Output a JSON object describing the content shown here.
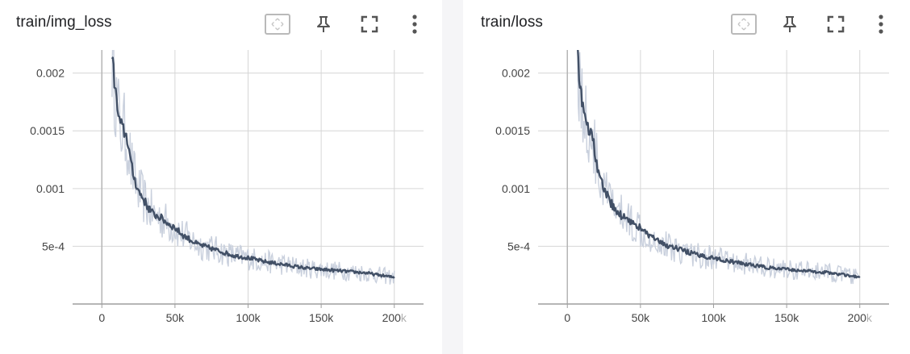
{
  "panels": [
    {
      "title": "train/img_loss",
      "toolbar": [
        "fit-domain-icon",
        "pin-icon",
        "fullscreen-icon",
        "more-vert-icon"
      ]
    },
    {
      "title": "train/loss",
      "toolbar": [
        "fit-domain-icon",
        "pin-icon",
        "fullscreen-icon",
        "more-vert-icon"
      ]
    }
  ],
  "colors": {
    "line": "#425066",
    "band": "#c9d0dd",
    "grid": "#d6d6d6",
    "axis": "#9e9e9e"
  },
  "chart_data": [
    {
      "type": "line",
      "title": "train/img_loss",
      "xlabel": "",
      "ylabel": "",
      "xlim": [
        -20000,
        220000
      ],
      "ylim": [
        0,
        0.0022
      ],
      "xticks": [
        0,
        50000,
        100000,
        150000,
        200000
      ],
      "xtick_labels": [
        "0",
        "50k",
        "100k",
        "150k",
        "200k"
      ],
      "yticks": [
        0.0005,
        0.001,
        0.0015,
        0.002
      ],
      "ytick_labels": [
        "5e-4",
        "0.001",
        "0.0015",
        "0.002"
      ],
      "grid": true,
      "series": [
        {
          "x": [
            7000,
            8000,
            9000,
            10000,
            12000,
            14000,
            16000,
            18000,
            20000,
            22000,
            25000,
            28000,
            31000,
            35000,
            40000,
            45000,
            50000,
            55000,
            60000,
            65000,
            70000,
            75000,
            80000,
            90000,
            100000,
            110000,
            120000,
            130000,
            140000,
            150000,
            160000,
            170000,
            180000,
            190000,
            200000
          ],
          "y": [
            0.0022,
            0.002,
            0.0019,
            0.00175,
            0.00158,
            0.00152,
            0.00148,
            0.0014,
            0.0012,
            0.0011,
            0.00098,
            0.00092,
            0.00085,
            0.00078,
            0.00075,
            0.0007,
            0.00066,
            0.0006,
            0.00056,
            0.00052,
            0.0005,
            0.00048,
            0.00046,
            0.00042,
            0.0004,
            0.00037,
            0.00035,
            0.00033,
            0.00031,
            0.0003,
            0.00029,
            0.00028,
            0.00027,
            0.00025,
            0.00023
          ]
        }
      ]
    },
    {
      "type": "line",
      "title": "train/loss",
      "xlabel": "",
      "ylabel": "",
      "xlim": [
        -20000,
        220000
      ],
      "ylim": [
        0,
        0.0022
      ],
      "xticks": [
        0,
        50000,
        100000,
        150000,
        200000
      ],
      "xtick_labels": [
        "0",
        "50k",
        "100k",
        "150k",
        "200k"
      ],
      "yticks": [
        0.0005,
        0.001,
        0.0015,
        0.002
      ],
      "ytick_labels": [
        "5e-4",
        "0.001",
        "0.0015",
        "0.002"
      ],
      "grid": true,
      "series": [
        {
          "x": [
            7000,
            8000,
            9000,
            10000,
            12000,
            14000,
            16000,
            18000,
            20000,
            22000,
            25000,
            28000,
            31000,
            35000,
            40000,
            45000,
            50000,
            55000,
            60000,
            65000,
            70000,
            75000,
            80000,
            90000,
            100000,
            110000,
            120000,
            130000,
            140000,
            150000,
            160000,
            170000,
            180000,
            190000,
            200000
          ],
          "y": [
            0.0022,
            0.002,
            0.0019,
            0.00175,
            0.00158,
            0.00152,
            0.00148,
            0.0014,
            0.0012,
            0.0011,
            0.00098,
            0.00092,
            0.00085,
            0.00078,
            0.00075,
            0.0007,
            0.00066,
            0.0006,
            0.00056,
            0.00052,
            0.0005,
            0.00048,
            0.00046,
            0.00042,
            0.0004,
            0.00037,
            0.00035,
            0.00033,
            0.00031,
            0.0003,
            0.00029,
            0.00028,
            0.00027,
            0.00025,
            0.00023
          ]
        }
      ]
    }
  ]
}
